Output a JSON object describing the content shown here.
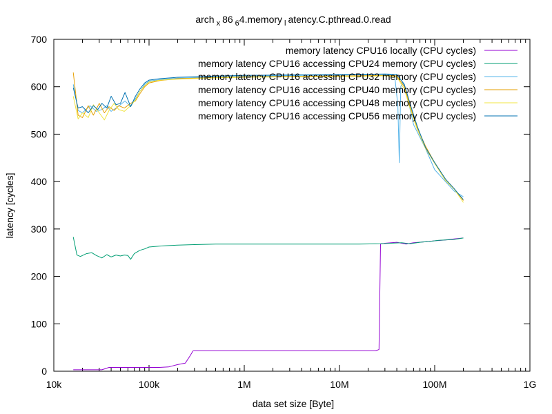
{
  "chart_data": {
    "type": "line",
    "title": "arch_x86_64.memory_latency.C.pthread.0.read",
    "title_parts": {
      "a": "arch",
      "b": "x",
      "c": "86",
      "d": "6",
      "e": "4.memory",
      "f": "l",
      "g": "atency.C.pthread.0.read"
    },
    "xlabel": "data set size [Byte]",
    "ylabel": "latency [cycles]",
    "xscale": "log",
    "xlim": [
      10000,
      1000000000
    ],
    "ylim": [
      0,
      700
    ],
    "x_ticks": [
      {
        "value": 10000,
        "label": "10k"
      },
      {
        "value": 100000,
        "label": "100k"
      },
      {
        "value": 1000000,
        "label": "1M"
      },
      {
        "value": 10000000,
        "label": "10M"
      },
      {
        "value": 100000000,
        "label": "100M"
      },
      {
        "value": 1000000000,
        "label": "1G"
      }
    ],
    "y_ticks": [
      {
        "value": 0,
        "label": "0"
      },
      {
        "value": 100,
        "label": "100"
      },
      {
        "value": 200,
        "label": "200"
      },
      {
        "value": 300,
        "label": "300"
      },
      {
        "value": 400,
        "label": "400"
      },
      {
        "value": 500,
        "label": "500"
      },
      {
        "value": 600,
        "label": "600"
      },
      {
        "value": 700,
        "label": "700"
      }
    ],
    "grid": false,
    "legend_position": "top-right",
    "series": [
      {
        "name": "memory latency CPU16 locally (CPU cycles)",
        "color": "#9400d3",
        "x": [
          16000,
          20000,
          25000,
          32000,
          38000,
          50000,
          64000,
          80000,
          100000,
          128000,
          160000,
          200000,
          240000,
          265000,
          290000,
          320000,
          500000,
          1000000,
          2000000,
          4000000,
          8000000,
          16000000,
          24000000,
          26000000,
          27000000,
          30000000,
          40000000,
          50000000,
          60000000,
          80000000,
          100000000,
          130000000,
          160000000,
          200000000
        ],
        "y": [
          3,
          3,
          3,
          3,
          8,
          8,
          8,
          8,
          8,
          8,
          9,
          14,
          17,
          30,
          43,
          43,
          43,
          43,
          43,
          43,
          43,
          43,
          43,
          46,
          268,
          270,
          272,
          268,
          271,
          273,
          275,
          277,
          279,
          281
        ]
      },
      {
        "name": "memory latency CPU16 accessing CPU24 memory (CPU cycles)",
        "color": "#009e73",
        "x": [
          16000,
          17500,
          19000,
          22000,
          25000,
          28000,
          32000,
          36000,
          40000,
          45000,
          50000,
          55000,
          60000,
          64000,
          70000,
          80000,
          90000,
          100000,
          130000,
          160000,
          200000,
          300000,
          500000,
          1000000,
          2000000,
          4000000,
          8000000,
          16000000,
          27000000,
          35000000,
          45000000,
          55000000,
          70000000,
          90000000,
          110000000,
          130000000,
          160000000,
          200000000
        ],
        "y": [
          283,
          245,
          242,
          248,
          250,
          244,
          239,
          246,
          241,
          245,
          243,
          245,
          244,
          236,
          248,
          255,
          258,
          262,
          264,
          265,
          266,
          267,
          268,
          268,
          268,
          268,
          268,
          268,
          269,
          270,
          271,
          269,
          272,
          274,
          276,
          277,
          278,
          281
        ]
      },
      {
        "name": "memory latency CPU16 accessing CPU32 memory (CPU cycles)",
        "color": "#56b4e9",
        "x": [
          16000,
          18000,
          20000,
          24000,
          28000,
          32000,
          36000,
          40000,
          45000,
          50000,
          56000,
          64000,
          72000,
          80000,
          90000,
          100000,
          130000,
          200000,
          400000,
          1000000,
          4000000,
          16000000,
          30000000,
          38000000,
          41000000,
          42500000,
          44000000,
          46000000,
          50000000,
          60000000,
          80000000,
          100000000,
          130000000,
          160000000,
          200000000
        ],
        "y": [
          605,
          550,
          545,
          560,
          548,
          552,
          560,
          548,
          555,
          562,
          570,
          558,
          575,
          590,
          605,
          612,
          615,
          618,
          620,
          622,
          624,
          625,
          626,
          624,
          560,
          440,
          600,
          610,
          590,
          520,
          470,
          425,
          400,
          380,
          368
        ]
      },
      {
        "name": "memory latency CPU16 accessing CPU40 memory (CPU cycles)",
        "color": "#e69f00",
        "x": [
          16000,
          18000,
          20000,
          23000,
          26000,
          30000,
          34000,
          38000,
          43000,
          48000,
          55000,
          64000,
          72000,
          80000,
          90000,
          100000,
          130000,
          200000,
          400000,
          1000000,
          4000000,
          16000000,
          30000000,
          40000000,
          48000000,
          55000000,
          65000000,
          80000000,
          100000000,
          130000000,
          160000000,
          200000000
        ],
        "y": [
          630,
          540,
          535,
          560,
          540,
          565,
          545,
          558,
          550,
          560,
          555,
          565,
          570,
          585,
          600,
          608,
          613,
          617,
          619,
          621,
          622,
          623,
          624,
          623,
          600,
          560,
          515,
          475,
          440,
          405,
          385,
          360
        ]
      },
      {
        "name": "memory latency CPU16 accessing CPU48 memory (CPU cycles)",
        "color": "#f0e442",
        "x": [
          16000,
          18000,
          20000,
          23000,
          26000,
          30000,
          34000,
          38000,
          43000,
          48000,
          55000,
          64000,
          72000,
          80000,
          90000,
          100000,
          130000,
          200000,
          400000,
          1000000,
          4000000,
          16000000,
          30000000,
          40000000,
          48000000,
          55000000,
          65000000,
          80000000,
          100000000,
          130000000,
          160000000,
          200000000
        ],
        "y": [
          580,
          532,
          545,
          535,
          562,
          545,
          530,
          550,
          565,
          552,
          548,
          560,
          572,
          590,
          602,
          610,
          614,
          616,
          618,
          620,
          621,
          622,
          623,
          621,
          595,
          555,
          512,
          470,
          438,
          402,
          384,
          356
        ]
      },
      {
        "name": "memory latency CPU16 accessing CPU56 memory (CPU cycles)",
        "color": "#0072b2",
        "x": [
          16000,
          18000,
          20000,
          23000,
          26000,
          29000,
          32000,
          36000,
          40000,
          45000,
          50000,
          56000,
          64000,
          72000,
          80000,
          90000,
          100000,
          130000,
          200000,
          400000,
          1000000,
          4000000,
          16000000,
          30000000,
          40000000,
          48000000,
          56000000,
          66000000,
          80000000,
          100000000,
          130000000,
          160000000,
          200000000
        ],
        "y": [
          598,
          555,
          558,
          545,
          560,
          552,
          565,
          555,
          580,
          562,
          565,
          588,
          558,
          580,
          595,
          608,
          614,
          617,
          620,
          622,
          624,
          625,
          626,
          627,
          626,
          605,
          560,
          515,
          472,
          440,
          405,
          385,
          362
        ]
      }
    ]
  }
}
